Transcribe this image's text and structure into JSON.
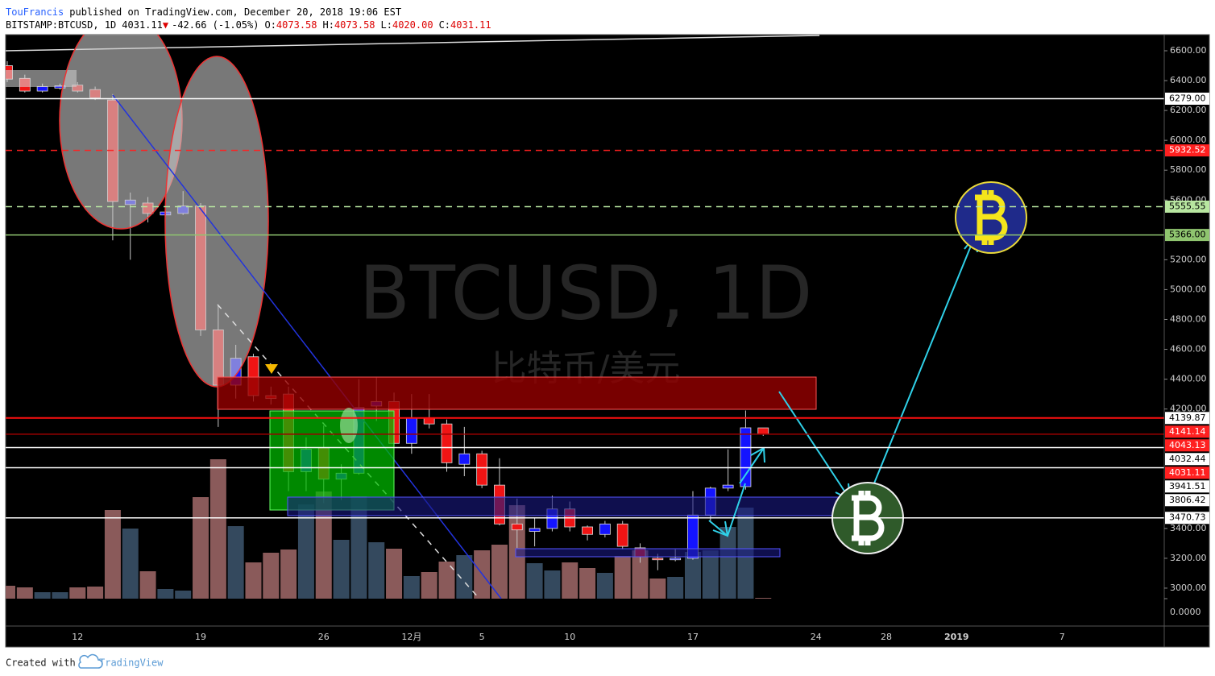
{
  "header": {
    "author": "TouFrancis",
    "published": "published on TradingView.com, December 20, 2018 19:06 EST",
    "symbol": "BITSTAMP:BTCUSD, 1D",
    "last": "4031.11",
    "arrow": "▼",
    "change": "-42.66 (-1.05%)",
    "open_label": "O:",
    "open": "4073.58",
    "high_label": "H:",
    "high": "4073.58",
    "low_label": "L:",
    "low": "4020.00",
    "close_label": "C:",
    "close": "4031.11"
  },
  "footer": {
    "created": "Created with",
    "brand": "TradingView"
  },
  "chart_data": {
    "type": "candlestick",
    "watermark": "BTCUSD, 1D",
    "watermark_sub": "比特币/美元",
    "categories": [
      null,
      null,
      null,
      null,
      "12",
      null,
      null,
      null,
      null,
      null,
      null,
      "19",
      null,
      null,
      null,
      null,
      null,
      null,
      "26",
      null,
      null,
      null,
      null,
      "12月",
      null,
      null,
      null,
      "5",
      null,
      null,
      null,
      null,
      "10",
      null,
      null,
      null,
      null,
      null,
      null,
      "17",
      null,
      null,
      null,
      null,
      null,
      null,
      "24",
      null,
      null,
      null,
      "28",
      null,
      null,
      null,
      "2019",
      null,
      null,
      null,
      null,
      null,
      "7",
      null,
      null
    ],
    "open": [
      6500,
      6415,
      6330,
      6350,
      6370,
      6340,
      6270,
      5570,
      5580,
      5500,
      5510,
      5560,
      4730,
      4360,
      4550,
      4290,
      4300,
      3780,
      3940,
      3730,
      3770,
      4220,
      4250,
      3970,
      4140,
      4100,
      3830,
      3900,
      3690,
      3430,
      3380,
      3400,
      3530,
      3410,
      3360,
      3430,
      3270,
      3200,
      3190,
      3200,
      3490,
      3670,
      3680,
      4073.58,
      null,
      null,
      null,
      null,
      null,
      null,
      null,
      null,
      null,
      null,
      null,
      null,
      null,
      null,
      null,
      null,
      null,
      null,
      null
    ],
    "high": [
      6530,
      6440,
      6380,
      6380,
      6390,
      6360,
      6310,
      5650,
      5620,
      5530,
      5660,
      5580,
      4890,
      4630,
      4570,
      4350,
      4350,
      4010,
      4090,
      3830,
      4400,
      4410,
      4310,
      4300,
      4300,
      4130,
      4080,
      3920,
      3870,
      3600,
      3470,
      3620,
      3580,
      3420,
      3450,
      3450,
      3300,
      3230,
      3260,
      3650,
      3680,
      3930,
      4190,
      4073.58,
      null,
      null,
      null,
      null,
      null,
      null,
      null,
      null,
      null,
      null,
      null,
      null,
      null,
      null,
      null,
      null,
      null,
      null,
      null
    ],
    "low": [
      6390,
      6320,
      6320,
      6340,
      6320,
      6270,
      5330,
      5200,
      5450,
      5490,
      5500,
      4690,
      4080,
      4270,
      4250,
      4230,
      3650,
      3650,
      3570,
      3590,
      3760,
      4120,
      3950,
      3900,
      4070,
      3780,
      3750,
      3670,
      3420,
      3270,
      3280,
      3380,
      3380,
      3320,
      3340,
      3260,
      3170,
      3120,
      3180,
      3190,
      3440,
      3650,
      3660,
      4020,
      null,
      null,
      null,
      null,
      null,
      null,
      null,
      null,
      null,
      null,
      null,
      null,
      null,
      null,
      null,
      null,
      null,
      null,
      null
    ],
    "close": [
      6410,
      6330,
      6360,
      6365,
      6330,
      6285,
      5590,
      5600,
      5510,
      5520,
      5560,
      4730,
      4360,
      4540,
      4290,
      4270,
      3780,
      3930,
      3730,
      3770,
      4210,
      4250,
      3970,
      4140,
      4100,
      3840,
      3900,
      3690,
      3430,
      3390,
      3400,
      3530,
      3410,
      3360,
      3430,
      3280,
      3210,
      3190,
      3200,
      3490,
      3670,
      3690,
      4074,
      4031.11,
      null,
      null,
      null,
      null,
      null,
      null,
      null,
      null,
      null,
      null,
      null,
      null,
      null,
      null,
      null,
      null,
      null,
      null,
      null
    ],
    "volume": [
      3200,
      2800,
      1600,
      1600,
      2800,
      3000,
      22000,
      17400,
      6800,
      2400,
      2000,
      25200,
      34600,
      18000,
      9000,
      11400,
      12200,
      23400,
      26600,
      14600,
      25400,
      14000,
      12400,
      5600,
      6600,
      9200,
      10800,
      12000,
      13400,
      23200,
      8800,
      7000,
      9000,
      7600,
      6400,
      10600,
      12000,
      5000,
      5400,
      11600,
      12000,
      17800,
      22600,
      200,
      null,
      null,
      null,
      null,
      null,
      null,
      null,
      null,
      null,
      null,
      null,
      null,
      null,
      null,
      null,
      null,
      null,
      null,
      null
    ],
    "up_color": "#1414ff",
    "down_color": "#f01414",
    "wick_color": "#c8c8c8",
    "volume_up_color": "#34495e",
    "volume_down_color": "#8a5a5a",
    "ylim": [
      2746,
      6708
    ],
    "yticks": [
      {
        "value": 6600,
        "label": "6600.00"
      },
      {
        "value": 6400,
        "label": "6400.00"
      },
      {
        "value": 6200,
        "label": "6200.00"
      },
      {
        "value": 6000,
        "label": "6000.00"
      },
      {
        "value": 5800,
        "label": "5800.00"
      },
      {
        "value": 5600,
        "label": "5600.00"
      },
      {
        "value": 5200,
        "label": "5200.00"
      },
      {
        "value": 5000,
        "label": "5000.00"
      },
      {
        "value": 4800,
        "label": "4800.00"
      },
      {
        "value": 4600,
        "label": "4600.00"
      },
      {
        "value": 4400,
        "label": "4400.00"
      },
      {
        "value": 4200,
        "label": "4200.00"
      },
      {
        "value": 3400,
        "label": "3400.00"
      },
      {
        "value": 3200,
        "label": "3200.00"
      },
      {
        "value": 3000,
        "label": "3000.00"
      }
    ],
    "y2lim": [
      0,
      40000
    ],
    "y2ticks": [
      {
        "value": 0,
        "label": "0.0000"
      }
    ],
    "grid": false,
    "levels": [
      {
        "value": 6279,
        "label": "6279.00",
        "color": "#ffffff",
        "line": "solid",
        "label_bg": "#ffffff",
        "label_fg": "#000000"
      },
      {
        "value": 5932.52,
        "label": "5932.52",
        "color": "#ff2020",
        "line": "dashed",
        "label_bg": "#ff2020",
        "label_fg": "#ffffff"
      },
      {
        "value": 5555.55,
        "label": "5555.55",
        "color": "#b8e6a0",
        "line": "dashed",
        "label_bg": "#b8e6a0",
        "label_fg": "#000000"
      },
      {
        "value": 5366,
        "label": "5366.00",
        "color": "#8fc46f",
        "line": "solid",
        "label_bg": "#8fc46f",
        "label_fg": "#000000"
      },
      {
        "value": 4139.87,
        "label": "4139.87",
        "color": "#ff1010",
        "line": "solid",
        "label_bg": "#ffffff",
        "label_fg": "#000000"
      },
      {
        "value": 4141.14,
        "label": "4141.14",
        "color": "#ff2020",
        "line": "none",
        "label_bg": "#ff2020",
        "label_fg": "#ffffff"
      },
      {
        "value": 4043.13,
        "label": "4043.13",
        "color": "#ff2020",
        "line": "none",
        "label_bg": "#ff2020",
        "label_fg": "#ffffff"
      },
      {
        "value": 4032.44,
        "label": "4032.44",
        "color": "#ffffff",
        "line": "none",
        "label_bg": "#ffffff",
        "label_fg": "#000000"
      },
      {
        "value": 4031.11,
        "label": "4031.11",
        "color": "#9a0000",
        "line": "solid",
        "label_bg": "#ff2020",
        "label_fg": "#ffffff"
      },
      {
        "value": 3941.51,
        "label": "3941.51",
        "color": "#ffffff",
        "line": "solid",
        "label_bg": "#ffffff",
        "label_fg": "#000000"
      },
      {
        "value": 3806.42,
        "label": "3806.42",
        "color": "#ffffff",
        "line": "solid",
        "label_bg": "#ffffff",
        "label_fg": "#000000"
      },
      {
        "value": 3470.73,
        "label": "3470.73",
        "color": "#ffffff",
        "line": "solid",
        "label_bg": "#ffffff",
        "label_fg": "#000000"
      }
    ]
  }
}
